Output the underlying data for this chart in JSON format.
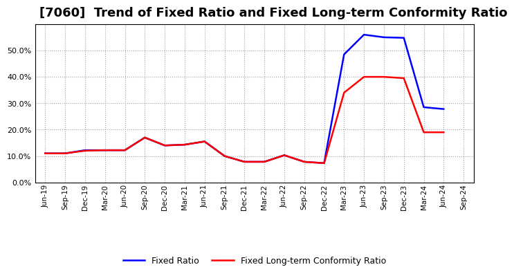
{
  "title": "[7060]  Trend of Fixed Ratio and Fixed Long-term Conformity Ratio",
  "x_labels": [
    "Jun-19",
    "Sep-19",
    "Dec-19",
    "Mar-20",
    "Jun-20",
    "Sep-20",
    "Dec-20",
    "Mar-21",
    "Jun-21",
    "Sep-21",
    "Dec-21",
    "Mar-22",
    "Jun-22",
    "Sep-22",
    "Dec-22",
    "Mar-23",
    "Jun-23",
    "Sep-23",
    "Dec-23",
    "Mar-24",
    "Jun-24",
    "Sep-24"
  ],
  "fixed_ratio": [
    0.11,
    0.11,
    0.122,
    0.122,
    0.122,
    0.17,
    0.14,
    0.143,
    0.155,
    0.1,
    0.078,
    0.078,
    0.103,
    0.078,
    0.073,
    0.485,
    0.56,
    0.55,
    0.548,
    0.285,
    0.278,
    null
  ],
  "fixed_lt_ratio": [
    0.11,
    0.11,
    0.12,
    0.122,
    0.122,
    0.17,
    0.14,
    0.143,
    0.155,
    0.1,
    0.078,
    0.078,
    0.103,
    0.078,
    0.073,
    0.34,
    0.4,
    0.4,
    0.395,
    0.19,
    0.19,
    null
  ],
  "fixed_ratio_color": "#0000ff",
  "fixed_lt_ratio_color": "#ff0000",
  "ylim": [
    0.0,
    0.6
  ],
  "yticks": [
    0.0,
    0.1,
    0.2,
    0.3,
    0.4,
    0.5
  ],
  "background_color": "#ffffff",
  "grid_color": "#888888",
  "title_fontsize": 13,
  "legend_labels": [
    "Fixed Ratio",
    "Fixed Long-term Conformity Ratio"
  ]
}
